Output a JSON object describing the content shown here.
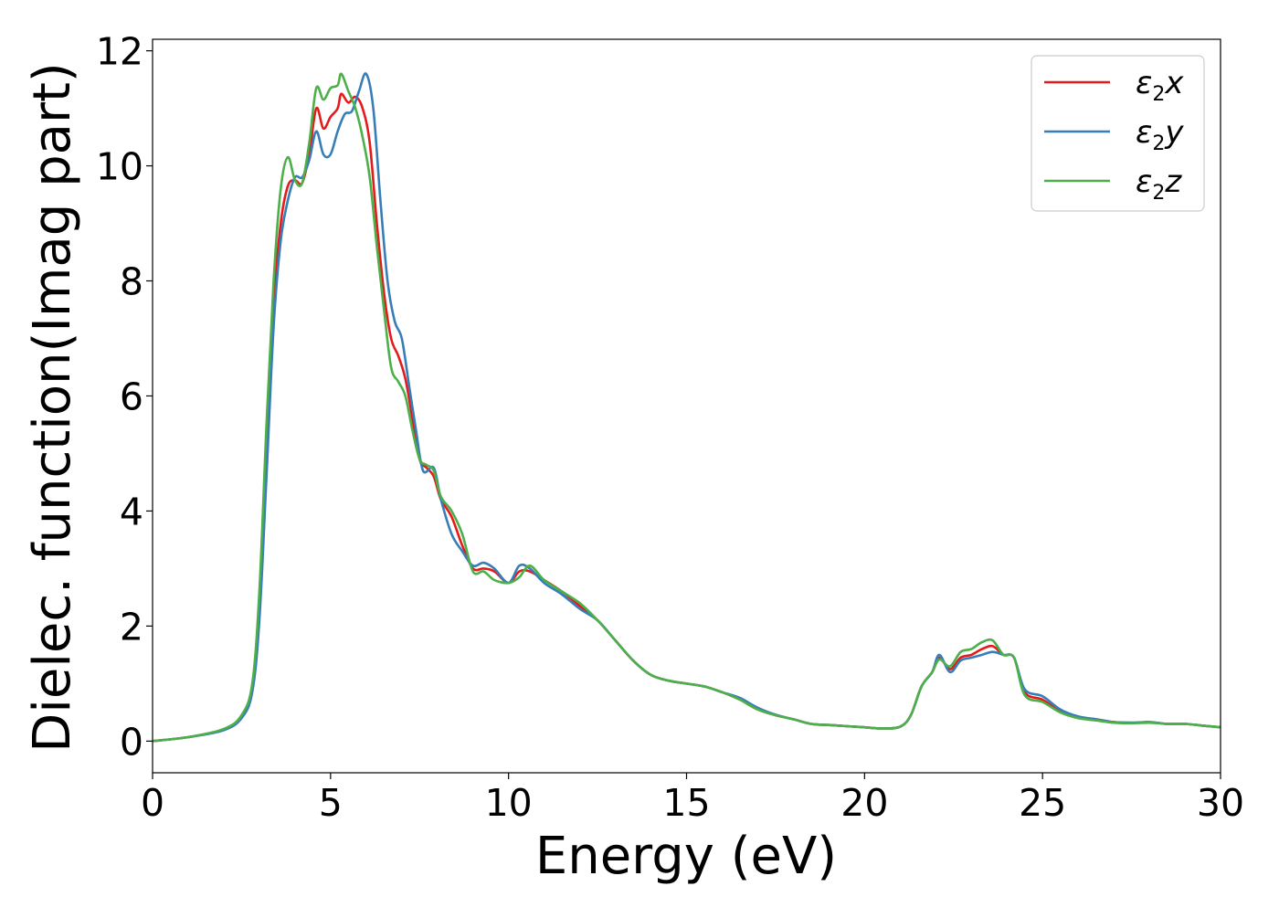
{
  "chart_data": {
    "type": "line",
    "title": "",
    "xlabel": "Energy (eV)",
    "ylabel": "Dielec. function(Imag part)",
    "xlim": [
      0,
      30
    ],
    "ylim": [
      -0.55,
      12.2
    ],
    "xticks": [
      0,
      5,
      10,
      15,
      20,
      25,
      30
    ],
    "yticks": [
      0,
      2,
      4,
      6,
      8,
      10,
      12
    ],
    "xtick_labels": [
      "0",
      "5",
      "10",
      "15",
      "20",
      "25",
      "30"
    ],
    "ytick_labels": [
      "0",
      "2",
      "4",
      "6",
      "8",
      "10",
      "12"
    ],
    "grid": false,
    "legend_position": "top-right",
    "series": [
      {
        "name": "ε₂x",
        "legend": {
          "base": "ε",
          "sub": "2",
          "tail": "x"
        },
        "color": "#e41a1c",
        "points": [
          [
            0,
            0
          ],
          [
            1,
            0.07
          ],
          [
            2,
            0.2
          ],
          [
            2.5,
            0.42
          ],
          [
            2.8,
            0.9
          ],
          [
            3.0,
            2.3
          ],
          [
            3.2,
            5.0
          ],
          [
            3.4,
            7.6
          ],
          [
            3.6,
            9.0
          ],
          [
            3.8,
            9.65
          ],
          [
            4.0,
            9.75
          ],
          [
            4.2,
            9.7
          ],
          [
            4.4,
            10.2
          ],
          [
            4.6,
            11.0
          ],
          [
            4.8,
            10.65
          ],
          [
            5.0,
            10.85
          ],
          [
            5.2,
            11.0
          ],
          [
            5.3,
            11.25
          ],
          [
            5.5,
            11.1
          ],
          [
            5.7,
            11.2
          ],
          [
            5.9,
            11.0
          ],
          [
            6.1,
            10.4
          ],
          [
            6.3,
            9.0
          ],
          [
            6.5,
            7.8
          ],
          [
            6.7,
            7.0
          ],
          [
            6.9,
            6.7
          ],
          [
            7.1,
            6.3
          ],
          [
            7.3,
            5.6
          ],
          [
            7.5,
            4.9
          ],
          [
            7.7,
            4.75
          ],
          [
            7.9,
            4.6
          ],
          [
            8.1,
            4.2
          ],
          [
            8.4,
            3.9
          ],
          [
            8.7,
            3.4
          ],
          [
            9.0,
            3.0
          ],
          [
            9.3,
            3.0
          ],
          [
            9.6,
            2.95
          ],
          [
            10.0,
            2.75
          ],
          [
            10.3,
            2.95
          ],
          [
            10.6,
            2.95
          ],
          [
            11.0,
            2.8
          ],
          [
            11.5,
            2.6
          ],
          [
            12.0,
            2.35
          ],
          [
            12.5,
            2.1
          ],
          [
            13.0,
            1.75
          ],
          [
            13.5,
            1.4
          ],
          [
            14.0,
            1.15
          ],
          [
            14.5,
            1.05
          ],
          [
            15.0,
            1.0
          ],
          [
            15.5,
            0.95
          ],
          [
            16.0,
            0.85
          ],
          [
            16.5,
            0.72
          ],
          [
            17.0,
            0.55
          ],
          [
            17.5,
            0.45
          ],
          [
            18.0,
            0.38
          ],
          [
            18.5,
            0.3
          ],
          [
            19.0,
            0.28
          ],
          [
            19.5,
            0.26
          ],
          [
            20.0,
            0.24
          ],
          [
            20.5,
            0.22
          ],
          [
            21.0,
            0.25
          ],
          [
            21.3,
            0.45
          ],
          [
            21.6,
            0.95
          ],
          [
            21.9,
            1.2
          ],
          [
            22.1,
            1.45
          ],
          [
            22.4,
            1.25
          ],
          [
            22.7,
            1.45
          ],
          [
            23.0,
            1.5
          ],
          [
            23.3,
            1.6
          ],
          [
            23.6,
            1.65
          ],
          [
            23.9,
            1.5
          ],
          [
            24.2,
            1.45
          ],
          [
            24.5,
            0.85
          ],
          [
            25.0,
            0.72
          ],
          [
            25.5,
            0.52
          ],
          [
            26.0,
            0.42
          ],
          [
            26.5,
            0.38
          ],
          [
            27.0,
            0.33
          ],
          [
            27.5,
            0.32
          ],
          [
            28.0,
            0.33
          ],
          [
            28.5,
            0.3
          ],
          [
            29.0,
            0.3
          ],
          [
            29.5,
            0.27
          ],
          [
            30,
            0.24
          ]
        ]
      },
      {
        "name": "ε₂y",
        "legend": {
          "base": "ε",
          "sub": "2",
          "tail": "y"
        },
        "color": "#377eb8",
        "points": [
          [
            0,
            0
          ],
          [
            1,
            0.07
          ],
          [
            2,
            0.19
          ],
          [
            2.5,
            0.4
          ],
          [
            2.8,
            0.85
          ],
          [
            3.0,
            2.1
          ],
          [
            3.2,
            4.6
          ],
          [
            3.4,
            7.2
          ],
          [
            3.6,
            8.7
          ],
          [
            3.8,
            9.4
          ],
          [
            4.0,
            9.8
          ],
          [
            4.2,
            9.8
          ],
          [
            4.4,
            10.1
          ],
          [
            4.6,
            10.6
          ],
          [
            4.8,
            10.2
          ],
          [
            5.0,
            10.2
          ],
          [
            5.2,
            10.6
          ],
          [
            5.4,
            10.9
          ],
          [
            5.6,
            10.95
          ],
          [
            5.8,
            11.3
          ],
          [
            6.0,
            11.6
          ],
          [
            6.2,
            11.0
          ],
          [
            6.4,
            9.4
          ],
          [
            6.6,
            8.0
          ],
          [
            6.8,
            7.3
          ],
          [
            7.0,
            7.0
          ],
          [
            7.2,
            6.2
          ],
          [
            7.4,
            5.4
          ],
          [
            7.6,
            4.7
          ],
          [
            7.9,
            4.75
          ],
          [
            8.1,
            4.2
          ],
          [
            8.4,
            3.6
          ],
          [
            8.7,
            3.3
          ],
          [
            9.0,
            3.05
          ],
          [
            9.3,
            3.1
          ],
          [
            9.6,
            3.0
          ],
          [
            10.0,
            2.75
          ],
          [
            10.3,
            3.05
          ],
          [
            10.6,
            3.0
          ],
          [
            11.0,
            2.75
          ],
          [
            11.5,
            2.55
          ],
          [
            12.0,
            2.3
          ],
          [
            12.5,
            2.1
          ],
          [
            13.0,
            1.75
          ],
          [
            13.5,
            1.4
          ],
          [
            14.0,
            1.15
          ],
          [
            14.5,
            1.05
          ],
          [
            15.0,
            1.0
          ],
          [
            15.5,
            0.95
          ],
          [
            16.0,
            0.85
          ],
          [
            16.5,
            0.75
          ],
          [
            17.0,
            0.58
          ],
          [
            17.5,
            0.46
          ],
          [
            18.0,
            0.38
          ],
          [
            18.5,
            0.3
          ],
          [
            19.0,
            0.28
          ],
          [
            19.5,
            0.26
          ],
          [
            20.0,
            0.24
          ],
          [
            20.5,
            0.22
          ],
          [
            21.0,
            0.25
          ],
          [
            21.3,
            0.45
          ],
          [
            21.6,
            0.95
          ],
          [
            21.9,
            1.2
          ],
          [
            22.1,
            1.5
          ],
          [
            22.4,
            1.2
          ],
          [
            22.7,
            1.4
          ],
          [
            23.0,
            1.45
          ],
          [
            23.3,
            1.5
          ],
          [
            23.6,
            1.55
          ],
          [
            23.9,
            1.5
          ],
          [
            24.2,
            1.45
          ],
          [
            24.5,
            0.9
          ],
          [
            25.0,
            0.78
          ],
          [
            25.5,
            0.55
          ],
          [
            26.0,
            0.43
          ],
          [
            26.5,
            0.38
          ],
          [
            27.0,
            0.33
          ],
          [
            27.5,
            0.32
          ],
          [
            28.0,
            0.33
          ],
          [
            28.5,
            0.3
          ],
          [
            29.0,
            0.3
          ],
          [
            29.5,
            0.27
          ],
          [
            30,
            0.24
          ]
        ]
      },
      {
        "name": "ε₂z",
        "legend": {
          "base": "ε",
          "sub": "2",
          "tail": "z"
        },
        "color": "#4daf4a",
        "points": [
          [
            0,
            0
          ],
          [
            1,
            0.07
          ],
          [
            2,
            0.21
          ],
          [
            2.5,
            0.45
          ],
          [
            2.8,
            1.0
          ],
          [
            3.0,
            2.6
          ],
          [
            3.2,
            5.5
          ],
          [
            3.4,
            8.0
          ],
          [
            3.6,
            9.6
          ],
          [
            3.8,
            10.15
          ],
          [
            4.0,
            9.75
          ],
          [
            4.2,
            9.7
          ],
          [
            4.4,
            10.4
          ],
          [
            4.6,
            11.35
          ],
          [
            4.8,
            11.15
          ],
          [
            5.0,
            11.35
          ],
          [
            5.2,
            11.4
          ],
          [
            5.3,
            11.6
          ],
          [
            5.5,
            11.3
          ],
          [
            5.7,
            11.0
          ],
          [
            5.9,
            10.5
          ],
          [
            6.1,
            9.8
          ],
          [
            6.3,
            8.6
          ],
          [
            6.5,
            7.5
          ],
          [
            6.7,
            6.5
          ],
          [
            6.9,
            6.25
          ],
          [
            7.1,
            6.0
          ],
          [
            7.3,
            5.4
          ],
          [
            7.5,
            4.9
          ],
          [
            7.7,
            4.8
          ],
          [
            7.9,
            4.7
          ],
          [
            8.1,
            4.25
          ],
          [
            8.4,
            4.0
          ],
          [
            8.7,
            3.6
          ],
          [
            9.0,
            2.95
          ],
          [
            9.3,
            2.95
          ],
          [
            9.6,
            2.8
          ],
          [
            10.0,
            2.75
          ],
          [
            10.3,
            2.85
          ],
          [
            10.6,
            3.05
          ],
          [
            11.0,
            2.8
          ],
          [
            11.5,
            2.6
          ],
          [
            12.0,
            2.4
          ],
          [
            12.5,
            2.1
          ],
          [
            13.0,
            1.75
          ],
          [
            13.5,
            1.4
          ],
          [
            14.0,
            1.15
          ],
          [
            14.5,
            1.05
          ],
          [
            15.0,
            1.0
          ],
          [
            15.5,
            0.95
          ],
          [
            16.0,
            0.85
          ],
          [
            16.5,
            0.72
          ],
          [
            17.0,
            0.55
          ],
          [
            17.5,
            0.45
          ],
          [
            18.0,
            0.38
          ],
          [
            18.5,
            0.3
          ],
          [
            19.0,
            0.28
          ],
          [
            19.5,
            0.26
          ],
          [
            20.0,
            0.24
          ],
          [
            20.5,
            0.22
          ],
          [
            21.0,
            0.25
          ],
          [
            21.3,
            0.45
          ],
          [
            21.6,
            0.95
          ],
          [
            21.9,
            1.2
          ],
          [
            22.1,
            1.42
          ],
          [
            22.4,
            1.3
          ],
          [
            22.7,
            1.55
          ],
          [
            23.0,
            1.6
          ],
          [
            23.3,
            1.72
          ],
          [
            23.6,
            1.75
          ],
          [
            23.9,
            1.5
          ],
          [
            24.2,
            1.45
          ],
          [
            24.5,
            0.8
          ],
          [
            25.0,
            0.68
          ],
          [
            25.5,
            0.5
          ],
          [
            26.0,
            0.4
          ],
          [
            26.5,
            0.36
          ],
          [
            27.0,
            0.32
          ],
          [
            27.5,
            0.31
          ],
          [
            28.0,
            0.32
          ],
          [
            28.5,
            0.3
          ],
          [
            29.0,
            0.3
          ],
          [
            29.5,
            0.27
          ],
          [
            30,
            0.24
          ]
        ]
      }
    ]
  }
}
